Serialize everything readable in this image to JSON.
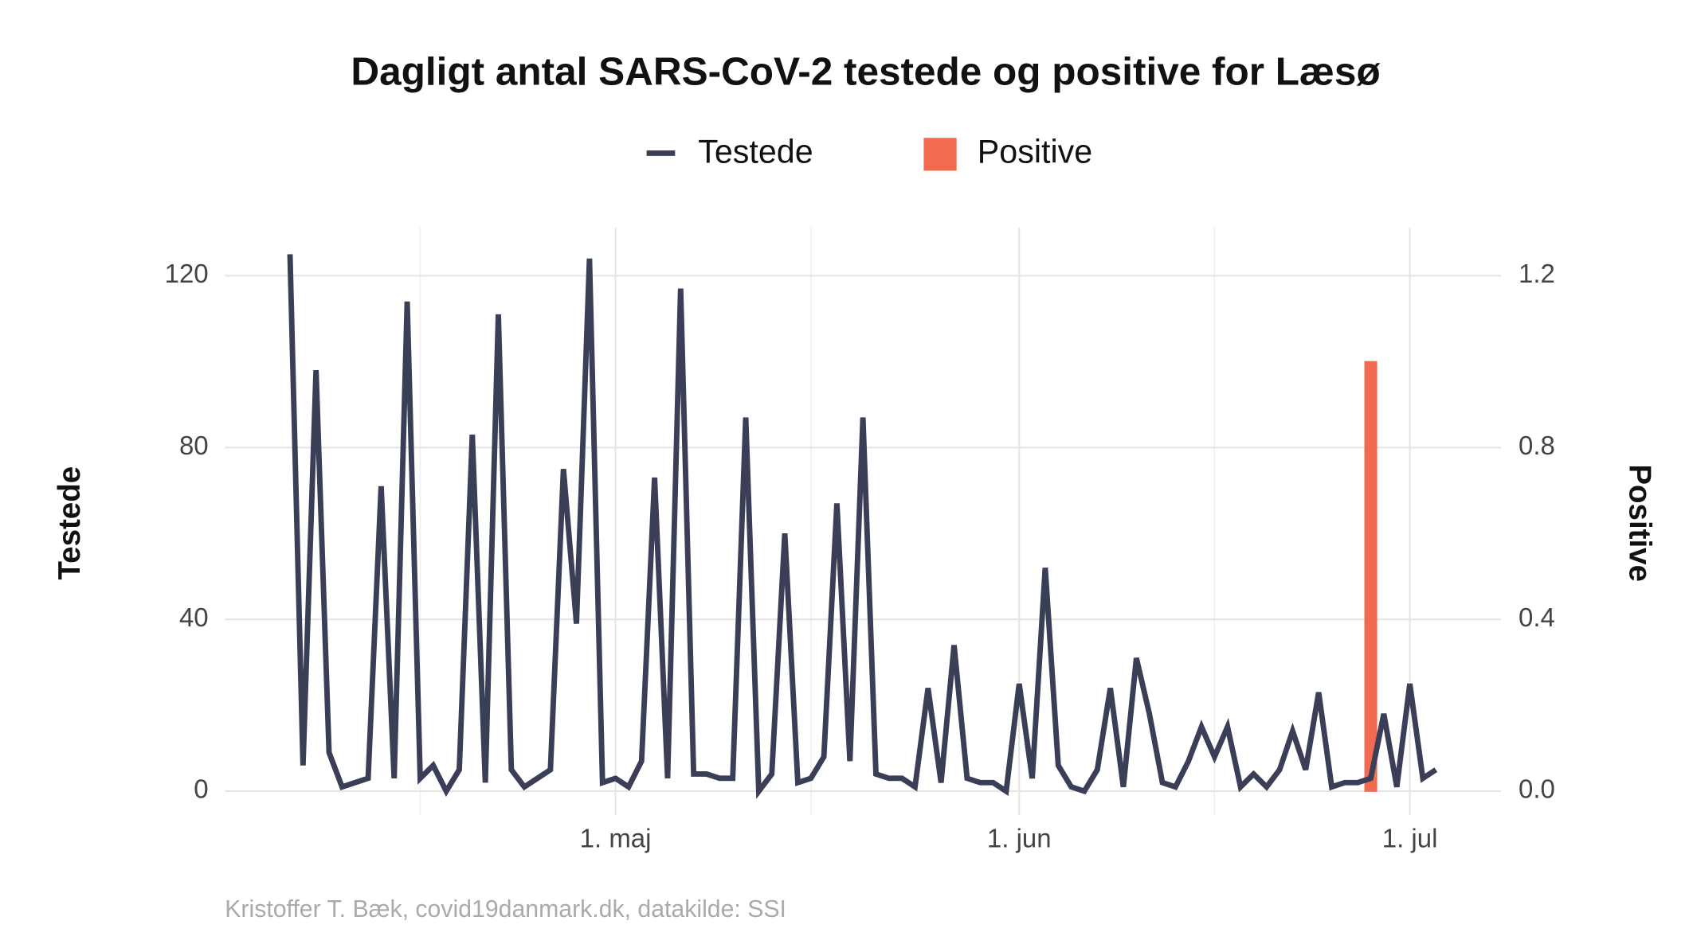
{
  "chart_data": {
    "type": "line-bar",
    "title": "Dagligt antal SARS-CoV-2 testede og positive for Læsø",
    "y_label": "Testede",
    "y2_label": "Positive",
    "caption": "Kristoffer T. Bæk, covid19danmark.dk, datakilde: SSI",
    "x": [
      "04-06",
      "04-07",
      "04-08",
      "04-09",
      "04-10",
      "04-11",
      "04-12",
      "04-13",
      "04-14",
      "04-15",
      "04-16",
      "04-17",
      "04-18",
      "04-19",
      "04-20",
      "04-21",
      "04-22",
      "04-23",
      "04-24",
      "04-25",
      "04-26",
      "04-27",
      "04-28",
      "04-29",
      "04-30",
      "05-01",
      "05-02",
      "05-03",
      "05-04",
      "05-05",
      "05-06",
      "05-07",
      "05-08",
      "05-09",
      "05-10",
      "05-11",
      "05-12",
      "05-13",
      "05-14",
      "05-15",
      "05-16",
      "05-17",
      "05-18",
      "05-19",
      "05-20",
      "05-21",
      "05-22",
      "05-23",
      "05-24",
      "05-25",
      "05-26",
      "05-27",
      "05-28",
      "05-29",
      "05-30",
      "05-31",
      "06-01",
      "06-02",
      "06-03",
      "06-04",
      "06-05",
      "06-06",
      "06-07",
      "06-08",
      "06-09",
      "06-10",
      "06-11",
      "06-12",
      "06-13",
      "06-14",
      "06-15",
      "06-16",
      "06-17",
      "06-18",
      "06-19",
      "06-20",
      "06-21",
      "06-22",
      "06-23",
      "06-24",
      "06-25",
      "06-26",
      "06-27",
      "06-28",
      "06-29",
      "06-30",
      "07-01",
      "07-02",
      "07-03"
    ],
    "series": [
      {
        "name": "Testede",
        "type": "line",
        "color": "#3a3e56",
        "values": [
          125,
          6,
          98,
          9,
          1,
          2,
          3,
          71,
          3,
          114,
          3,
          6,
          0,
          5,
          83,
          2,
          111,
          5,
          1,
          3,
          5,
          75,
          39,
          124,
          2,
          3,
          1,
          7,
          73,
          3,
          117,
          4,
          4,
          3,
          3,
          87,
          0,
          4,
          60,
          2,
          3,
          8,
          67,
          7,
          87,
          4,
          3,
          3,
          1,
          24,
          2,
          34,
          3,
          2,
          2,
          0,
          25,
          3,
          52,
          6,
          1,
          0,
          5,
          24,
          1,
          31,
          18,
          2,
          1,
          7,
          15,
          8,
          15,
          1,
          4,
          1,
          5,
          14,
          5,
          23,
          1,
          2,
          2,
          3,
          18,
          1,
          25,
          3,
          5
        ]
      },
      {
        "name": "Positive",
        "type": "bar",
        "axis": "y2",
        "color": "#f26a4f",
        "values": [
          0,
          0,
          0,
          0,
          0,
          0,
          0,
          0,
          0,
          0,
          0,
          0,
          0,
          0,
          0,
          0,
          0,
          0,
          0,
          0,
          0,
          0,
          0,
          0,
          0,
          0,
          0,
          0,
          0,
          0,
          0,
          0,
          0,
          0,
          0,
          0,
          0,
          0,
          0,
          0,
          0,
          0,
          0,
          0,
          0,
          0,
          0,
          0,
          0,
          0,
          0,
          0,
          0,
          0,
          0,
          0,
          0,
          0,
          0,
          0,
          0,
          0,
          0,
          0,
          0,
          0,
          0,
          0,
          0,
          0,
          0,
          0,
          0,
          0,
          0,
          0,
          0,
          0,
          0,
          0,
          0,
          0,
          0,
          1,
          0,
          0,
          0,
          0,
          0
        ]
      }
    ],
    "xlim": [
      "04-01",
      "07-08"
    ],
    "xticks": [
      {
        "value": "05-01",
        "label": "1. maj"
      },
      {
        "value": "06-01",
        "label": "1. jun"
      },
      {
        "value": "07-01",
        "label": "1. jul"
      }
    ],
    "xminorticks": [
      "04-16",
      "05-16",
      "06-16"
    ],
    "ylim": [
      -5.6,
      131.2
    ],
    "yticks": [
      0,
      40,
      80,
      120
    ],
    "y2lim": [
      -0.056,
      1.312
    ],
    "y2ticks": [
      {
        "value": 0,
        "label": "0.0"
      },
      {
        "value": 0.4,
        "label": "0.4"
      },
      {
        "value": 0.8,
        "label": "0.8"
      },
      {
        "value": 1.2,
        "label": "1.2"
      }
    ],
    "grid": true,
    "legend": "top"
  }
}
